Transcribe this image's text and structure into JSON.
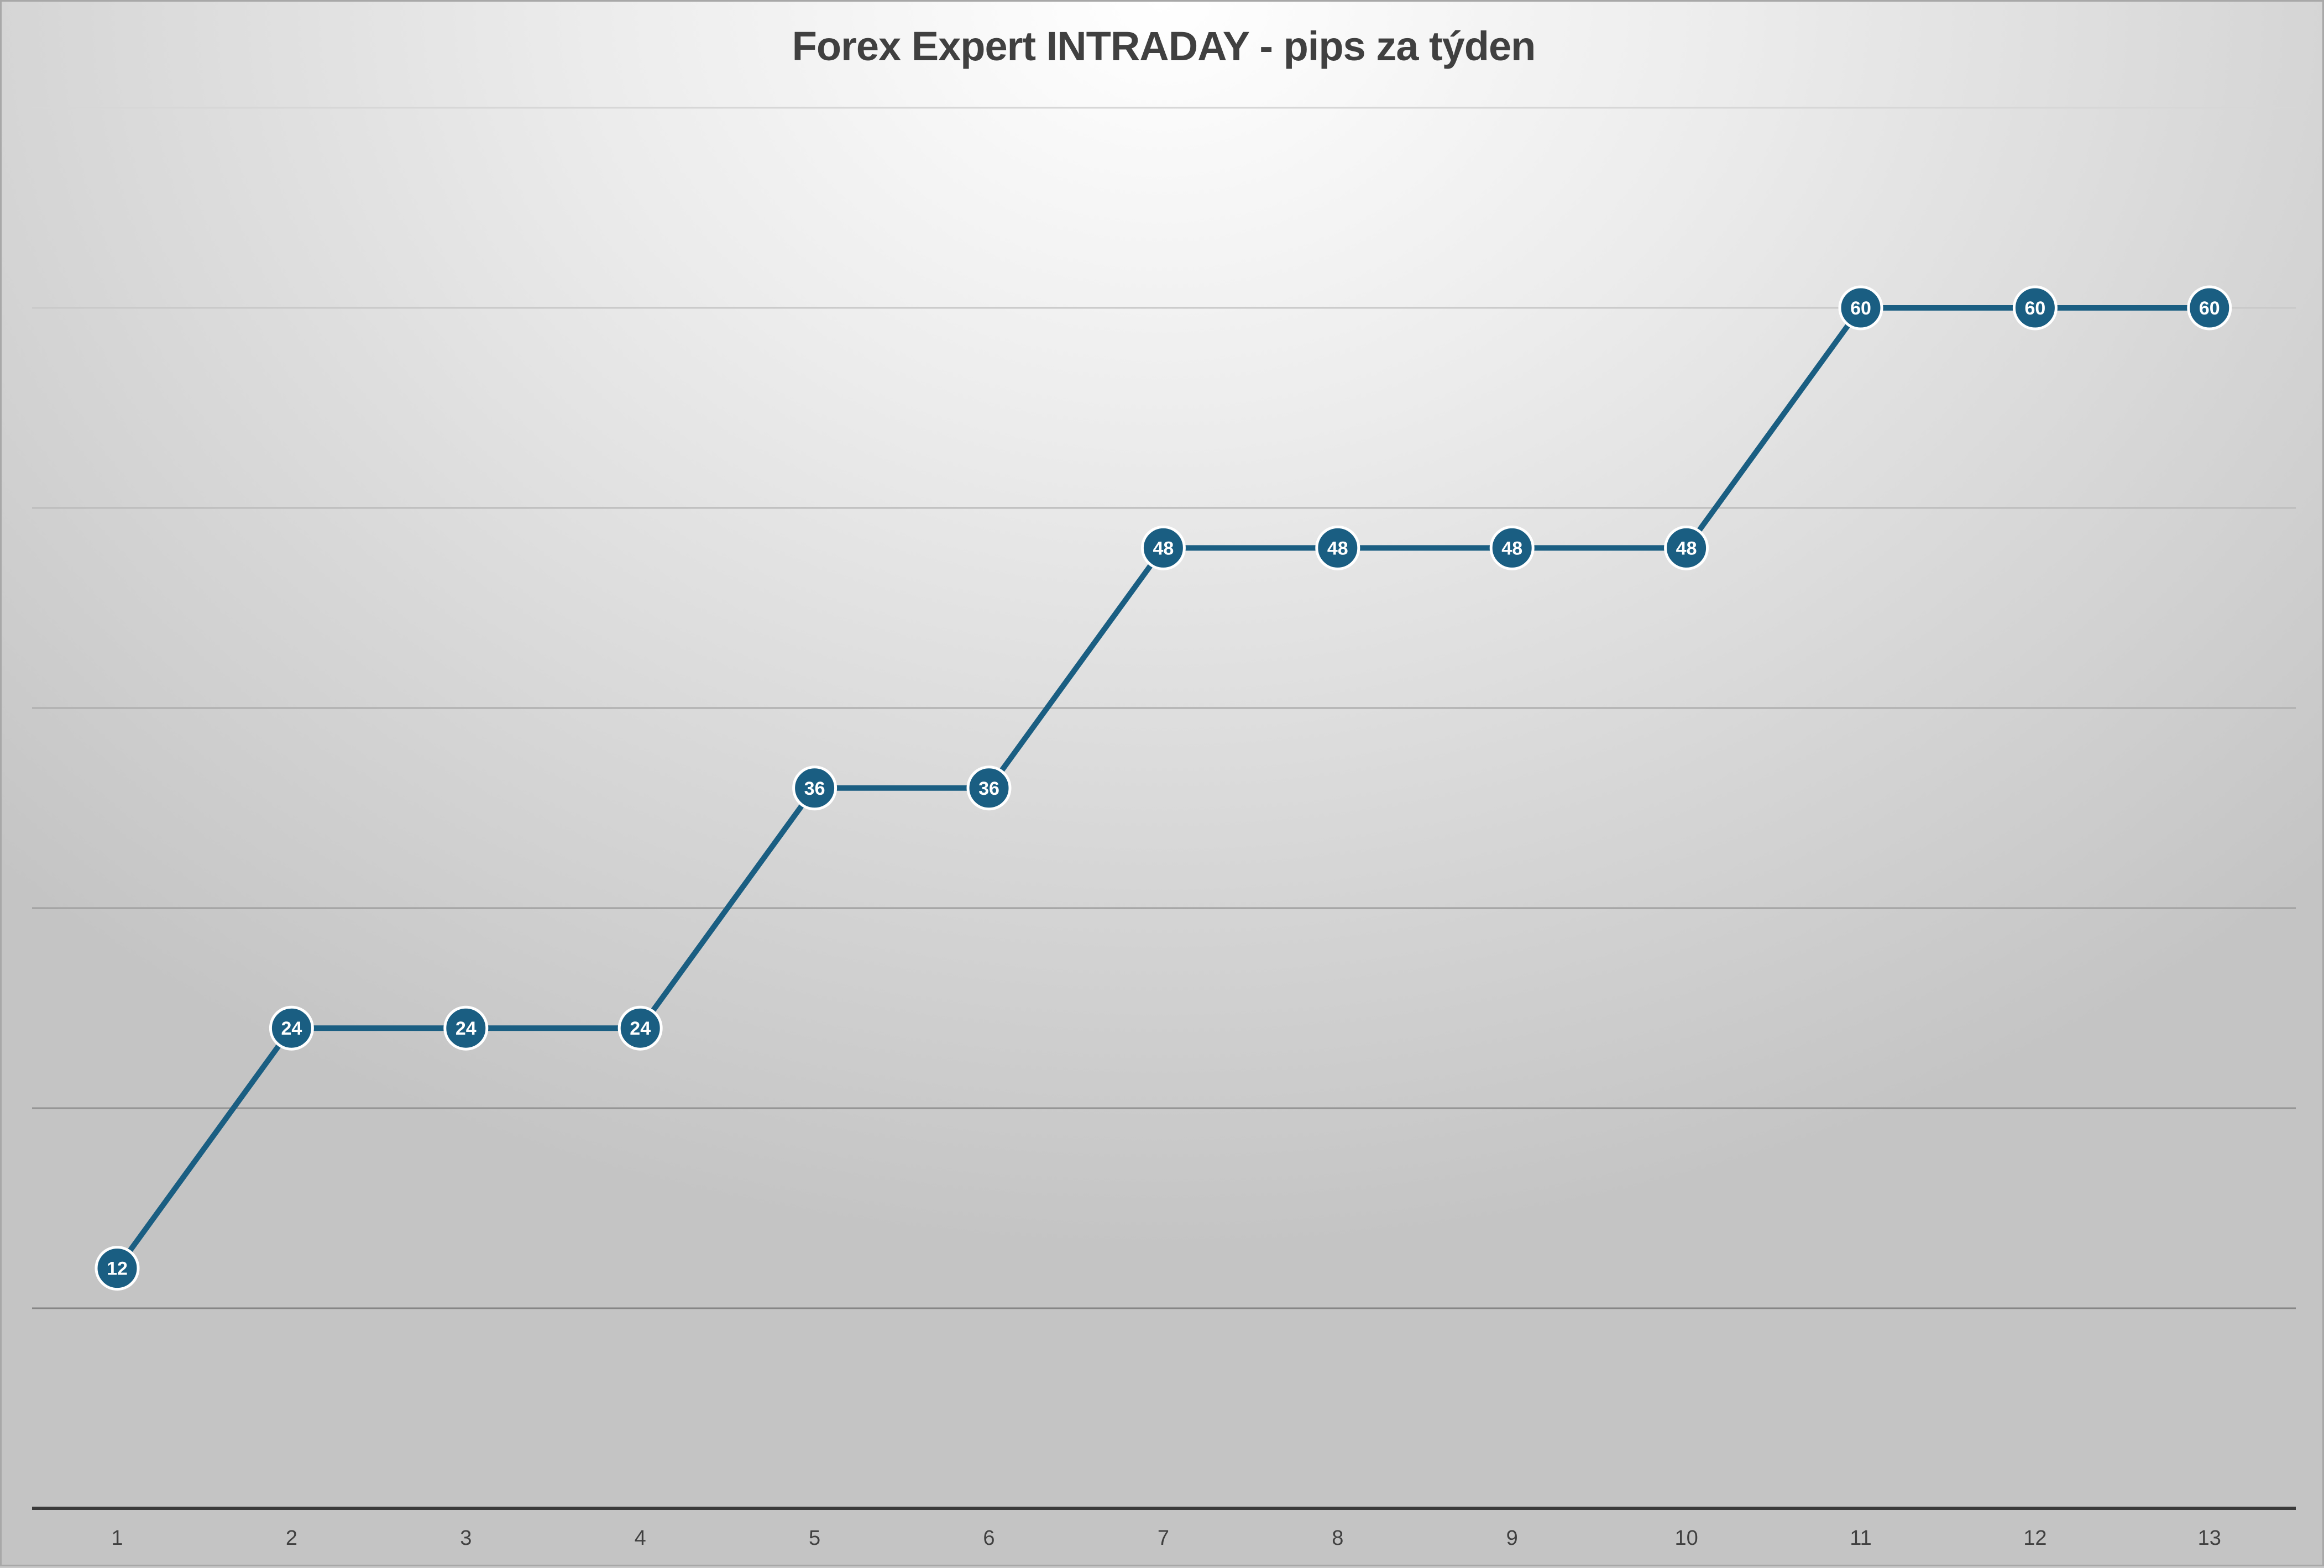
{
  "chart_data": {
    "type": "line",
    "title": "Forex Expert INTRADAY - pips za týden",
    "xlabel": "",
    "ylabel": "",
    "categories": [
      "1",
      "2",
      "3",
      "4",
      "5",
      "6",
      "7",
      "8",
      "9",
      "10",
      "11",
      "12",
      "13"
    ],
    "series": [
      {
        "values": [
          12,
          24,
          24,
          24,
          36,
          36,
          48,
          48,
          48,
          48,
          60,
          60,
          60
        ],
        "color": "#1a5e82"
      }
    ],
    "data_labels": true,
    "ylim": [
      0,
      70
    ],
    "y_gridline_step": 10,
    "y_tick_labels_visible": false,
    "legend": "none",
    "grid": true
  }
}
